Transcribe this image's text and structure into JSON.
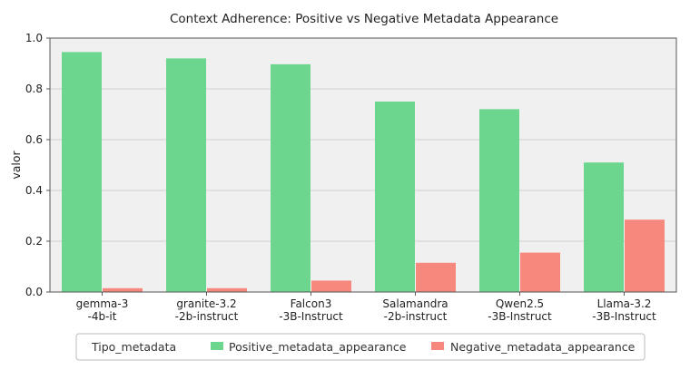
{
  "chart_data": {
    "type": "bar",
    "title": "Context Adherence: Positive vs Negative Metadata Appearance",
    "xlabel": "",
    "ylabel": "valor",
    "ylim": [
      0,
      1.0
    ],
    "yticks": [
      "0.0",
      "0.2",
      "0.4",
      "0.6",
      "0.8",
      "1.0"
    ],
    "grid": true,
    "categories": [
      [
        "gemma-3",
        "-4b-it"
      ],
      [
        "granite-3.2",
        "-2b-instruct"
      ],
      [
        "Falcon3",
        "-3B-Instruct"
      ],
      [
        "Salamandra",
        "-2b-instruct"
      ],
      [
        "Qwen2.5",
        "-3B-Instruct"
      ],
      [
        "Llama-3.2",
        "-3B-Instruct"
      ]
    ],
    "legend_title": "Tipo_metadata",
    "legend_position": "bottom",
    "series": [
      {
        "name": "Positive_metadata_appearance",
        "color": "#6cd68f",
        "values": [
          0.945,
          0.92,
          0.897,
          0.75,
          0.72,
          0.51
        ]
      },
      {
        "name": "Negative_metadata_appearance",
        "color": "#f7887e",
        "values": [
          0.015,
          0.015,
          0.045,
          0.115,
          0.155,
          0.285
        ]
      }
    ]
  }
}
